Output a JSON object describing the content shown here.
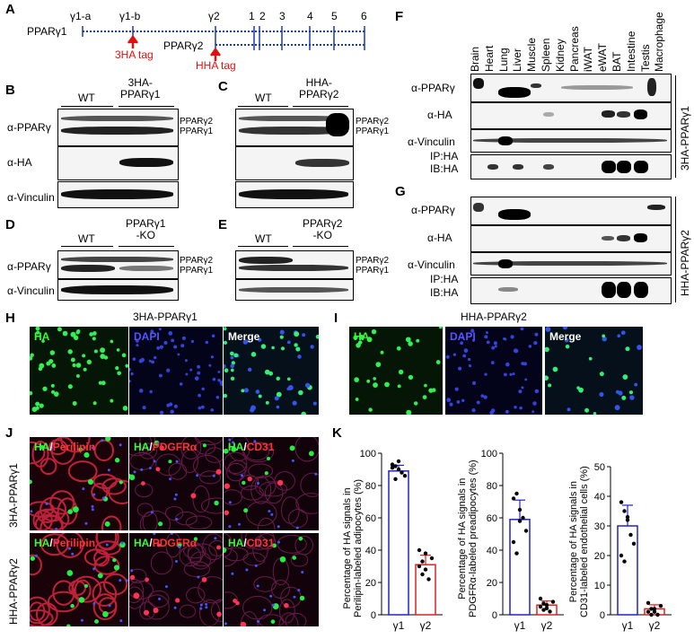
{
  "panels": {
    "A": "A",
    "B": "B",
    "C": "C",
    "D": "D",
    "E": "E",
    "F": "F",
    "G": "G",
    "H": "H",
    "I": "I",
    "J": "J",
    "K": "K"
  },
  "panel_a": {
    "gene1": "PPARγ1",
    "gene2": "PPARγ2",
    "exons": [
      "γ1-a",
      "γ1-b",
      "γ2",
      "1",
      "2",
      "3",
      "4",
      "5",
      "6"
    ],
    "tag1": "3HA tag",
    "tag2": "HHA tag"
  },
  "panel_b": {
    "wt": "WT",
    "group": "3HA-\nPPARγ1",
    "ab1": "α-PPARγ",
    "ab2": "α-HA",
    "ab3": "α-Vinculin",
    "iso2": "PPARγ2",
    "iso1": "PPARγ1"
  },
  "panel_c": {
    "wt": "WT",
    "group": "HHA-\nPPARγ2",
    "iso2": "PPARγ2",
    "iso1": "PPARγ1"
  },
  "panel_d": {
    "wt": "WT",
    "group": "PPARγ1\n-KO",
    "ab1": "α-PPARγ",
    "ab2": "α-Vinculin",
    "iso2": "PPARγ2",
    "iso1": "PPARγ1"
  },
  "panel_e": {
    "wt": "WT",
    "group": "PPARγ2\n-KO",
    "iso2": "PPARγ2",
    "iso1": "PPARγ1"
  },
  "panel_f": {
    "tissues": [
      "Brain",
      "Heart",
      "Lung",
      "Liver",
      "Muscle",
      "Spleen",
      "Kidney",
      "Pancreas",
      "iWAT",
      "eWAT",
      "BAT",
      "Intestine",
      "Testis",
      "Macrophage"
    ],
    "ab1": "α-PPARγ",
    "ab2": "α-HA",
    "ab3": "α-Vinculin",
    "ip": "IP:HA",
    "ib": "IB:HA",
    "side": "3HA-PPARγ1"
  },
  "panel_g": {
    "ab1": "α-PPARγ",
    "ab2": "α-HA",
    "ab3": "α-Vinculin",
    "ip": "IP:HA",
    "ib": "IB:HA",
    "side": "HHA-PPARγ2"
  },
  "panel_h": {
    "title": "3HA-PPARγ1",
    "c1": "HA",
    "c2": "DAPI",
    "c3": "Merge"
  },
  "panel_i": {
    "title": "HHA-PPARγ2",
    "c1": "HA",
    "c2": "DAPI",
    "c3": "Merge"
  },
  "panel_j": {
    "row1": "3HA-PPARγ1",
    "row2": "HHA-PPARγ2",
    "c1a": "HA",
    "c1b": "Perilipin",
    "c2a": "HA",
    "c2b": "PDGFRα",
    "c3a": "HA",
    "c3b": "CD31"
  },
  "chart_data": [
    {
      "type": "bar",
      "categories": [
        "γ1",
        "γ2"
      ],
      "values": [
        89,
        31
      ],
      "points": [
        [
          93,
          92,
          90,
          88,
          86,
          91,
          84,
          95
        ],
        [
          40,
          33,
          28,
          22,
          35,
          30,
          25,
          38
        ]
      ],
      "ylabel": "Percentage of HA signals in\nPerilipin-labeled adipocytes (%)",
      "ylim": [
        0,
        100
      ],
      "yticks": [
        0,
        20,
        40,
        60,
        80,
        100
      ],
      "colors": [
        "#2222cc",
        "#dd2222"
      ]
    },
    {
      "type": "bar",
      "categories": [
        "γ1",
        "γ2"
      ],
      "values": [
        59,
        6
      ],
      "points": [
        [
          72,
          75,
          65,
          60,
          52,
          45,
          38,
          58
        ],
        [
          10,
          7,
          4,
          2,
          8,
          5,
          3,
          6
        ]
      ],
      "ylabel": "Percentage of HA signals in\nPDGFRα-labeled preadipocytes (%)",
      "ylim": [
        0,
        100
      ],
      "yticks": [
        0,
        20,
        40,
        60,
        80,
        100
      ],
      "colors": [
        "#2222cc",
        "#dd2222"
      ]
    },
    {
      "type": "bar",
      "categories": [
        "γ1",
        "γ2"
      ],
      "values": [
        30,
        2
      ],
      "points": [
        [
          38,
          35,
          32,
          27,
          24,
          20,
          18,
          33
        ],
        [
          4,
          2,
          1,
          0,
          3,
          1,
          0,
          2
        ]
      ],
      "ylabel": "Percentage of HA signals in\nCD31-labeled endothelial cells (%)",
      "ylim": [
        0,
        50
      ],
      "yticks": [
        0,
        10,
        20,
        30,
        40,
        50
      ],
      "colors": [
        "#2222cc",
        "#dd2222"
      ]
    }
  ]
}
